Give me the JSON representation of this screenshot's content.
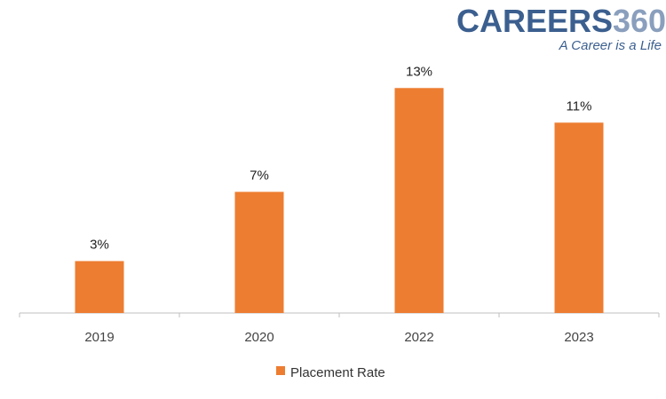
{
  "brand": {
    "name_part1": "CAREERS",
    "name_part2": "360",
    "tagline": "A Career is a Life",
    "color_primary": "#3b5f8f",
    "color_secondary": "#8a9fbd"
  },
  "colors": {
    "bar": "#ed7d31",
    "axis": "#bfbfbf"
  },
  "chart_data": {
    "type": "bar",
    "categories": [
      "2019",
      "2020",
      "2022",
      "2023"
    ],
    "series": [
      {
        "name": "Placement Rate",
        "values": [
          3,
          7,
          13,
          11
        ]
      }
    ],
    "data_labels": [
      "3%",
      "7%",
      "13%",
      "11%"
    ],
    "ylim": [
      0,
      14.5
    ],
    "grid": false,
    "y_axis_visible": false,
    "legend": {
      "placement": "bottom",
      "entries": [
        "Placement Rate"
      ]
    }
  }
}
